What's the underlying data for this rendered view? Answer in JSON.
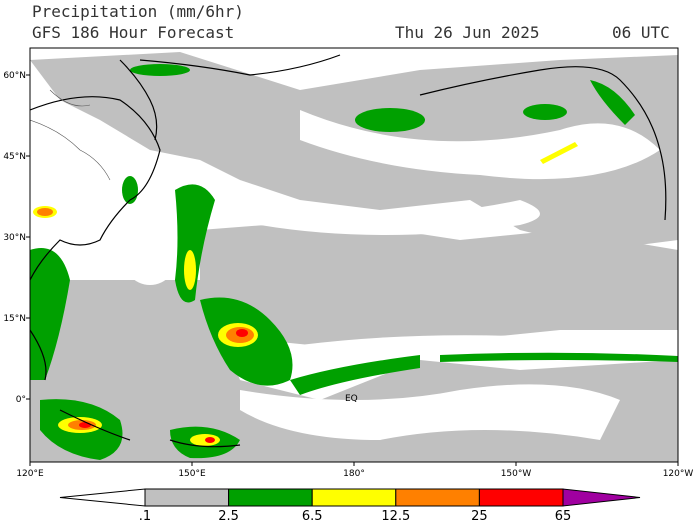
{
  "header": {
    "title": "Precipitation (mm/6hr)",
    "subtitle": "GFS 186 Hour Forecast",
    "date": "Thu 26 Jun 2025",
    "time": "06 UTC"
  },
  "map": {
    "lat_labels": [
      "60°N",
      "45°N",
      "30°N",
      "15°N",
      "0°"
    ],
    "lon_labels": [
      "120°E",
      "150°E",
      "180°",
      "150°W",
      "120°W"
    ],
    "annotation": "EQ"
  },
  "colorbar": {
    "labels": [
      ".1",
      "2.5",
      "6.5",
      "12.5",
      "25",
      "65"
    ],
    "colors": [
      "#ffffff",
      "#c0c0c0",
      "#00a000",
      "#ffff00",
      "#ff8000",
      "#ff0000",
      "#a000a0"
    ]
  }
}
